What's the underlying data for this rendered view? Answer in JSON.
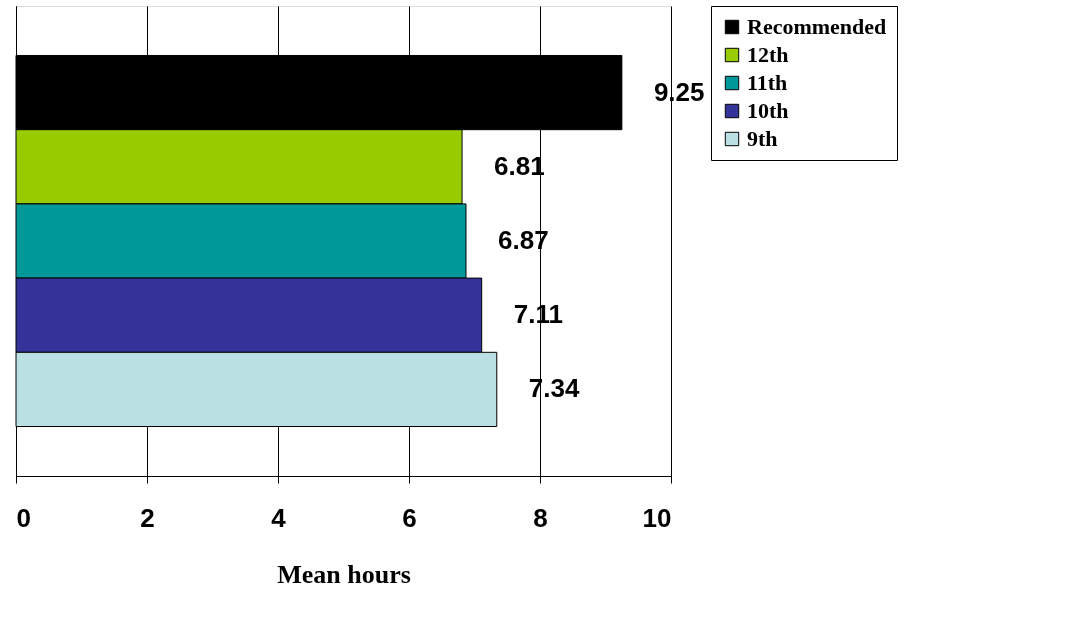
{
  "chart_data": {
    "type": "bar",
    "orientation": "horizontal",
    "categories": [
      null
    ],
    "series": [
      {
        "name": "Recommended",
        "color": "#000000",
        "values": [
          9.25
        ]
      },
      {
        "name": "12th",
        "color": "#99cc00",
        "values": [
          6.81
        ]
      },
      {
        "name": "11th",
        "color": "#009999",
        "values": [
          6.87
        ]
      },
      {
        "name": "10th",
        "color": "#333399",
        "values": [
          7.11
        ]
      },
      {
        "name": "9th",
        "color": "#bbe0e3",
        "values": [
          7.34
        ]
      }
    ],
    "xlabel": "Mean hours",
    "xlim": [
      0,
      10
    ],
    "xticks": [
      0,
      2,
      4,
      6,
      8,
      10
    ],
    "grid": "x",
    "legend": "right",
    "data_labels": true
  }
}
